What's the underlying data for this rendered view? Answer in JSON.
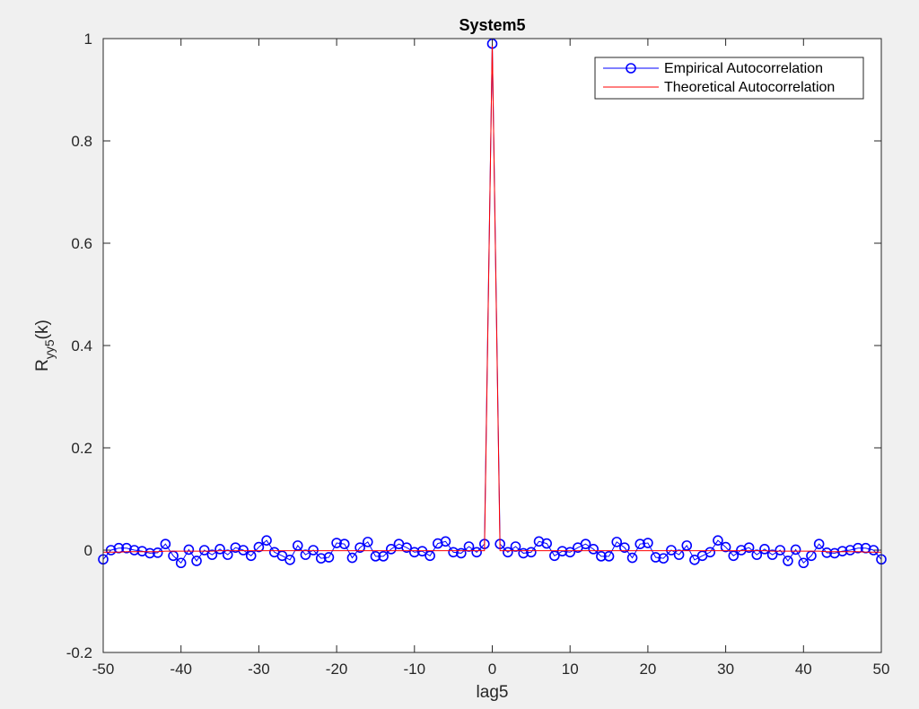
{
  "chart_data": {
    "type": "line",
    "title": "System5",
    "xlabel": "lag5",
    "ylabel_main": "R",
    "ylabel_sub": "yy5",
    "ylabel_suffix": "(k)",
    "xlim": [
      -50,
      50
    ],
    "ylim": [
      -0.2,
      1
    ],
    "xticks": [
      -50,
      -40,
      -30,
      -20,
      -10,
      0,
      10,
      20,
      30,
      40,
      50
    ],
    "yticks": [
      -0.2,
      0,
      0.2,
      0.4,
      0.6,
      0.8,
      1
    ],
    "ytick_labels": [
      "-0.2",
      "0",
      "0.2",
      "0.4",
      "0.6",
      "0.8",
      "1"
    ],
    "grid": false,
    "legend_position": "top-right",
    "x_start": -50,
    "x_step": 1,
    "series": [
      {
        "name": "Empirical Autocorrelation",
        "color": "#0000ff",
        "marker": "circle",
        "values": [
          -0.018,
          0.0,
          0.004,
          0.004,
          0.0,
          -0.002,
          -0.006,
          -0.005,
          0.012,
          -0.011,
          -0.025,
          0.001,
          -0.021,
          0.0,
          -0.009,
          0.002,
          -0.009,
          0.005,
          0.0,
          -0.011,
          0.006,
          0.019,
          -0.004,
          -0.011,
          -0.019,
          0.009,
          -0.009,
          0.0,
          -0.016,
          -0.014,
          0.014,
          0.012,
          -0.015,
          0.005,
          0.016,
          -0.012,
          -0.012,
          0.002,
          0.012,
          0.005,
          -0.004,
          -0.002,
          -0.011,
          0.013,
          0.017,
          -0.004,
          -0.006,
          0.007,
          -0.004,
          0.012,
          0.99,
          0.012,
          -0.004,
          0.007,
          -0.006,
          -0.004,
          0.017,
          0.013,
          -0.011,
          -0.002,
          -0.004,
          0.005,
          0.012,
          0.002,
          -0.012,
          -0.012,
          0.016,
          0.005,
          -0.015,
          0.012,
          0.014,
          -0.014,
          -0.016,
          0.0,
          -0.009,
          0.009,
          -0.019,
          -0.011,
          -0.004,
          0.019,
          0.006,
          -0.011,
          0.0,
          0.005,
          -0.009,
          0.002,
          -0.009,
          0.0,
          -0.021,
          0.001,
          -0.025,
          -0.011,
          0.012,
          -0.005,
          -0.006,
          -0.002,
          0.0,
          0.004,
          0.004,
          0.0,
          -0.018
        ]
      },
      {
        "name": "Theoretical Autocorrelation",
        "color": "#ff0000",
        "marker": "none",
        "values": [
          -0.004,
          -0.004,
          -0.004,
          -0.003,
          -0.003,
          -0.003,
          -0.003,
          -0.003,
          -0.002,
          -0.002,
          -0.002,
          -0.002,
          -0.002,
          -0.002,
          -0.002,
          -0.001,
          -0.001,
          -0.001,
          -0.001,
          -0.001,
          -0.001,
          -0.001,
          -0.001,
          -0.001,
          -0.001,
          -0.001,
          -0.001,
          -0.001,
          -0.001,
          -0.001,
          -0.001,
          -0.001,
          -0.001,
          -0.001,
          -0.001,
          -0.001,
          -0.001,
          -0.001,
          -0.001,
          -0.001,
          -0.001,
          -0.001,
          -0.001,
          -0.001,
          -0.001,
          -0.001,
          -0.001,
          -0.001,
          -0.001,
          -0.001,
          0.99,
          -0.001,
          -0.001,
          -0.001,
          -0.001,
          -0.001,
          -0.001,
          -0.001,
          -0.001,
          -0.001,
          -0.001,
          -0.001,
          -0.001,
          -0.001,
          -0.001,
          -0.001,
          -0.001,
          -0.001,
          -0.001,
          -0.001,
          -0.001,
          -0.001,
          -0.001,
          -0.001,
          -0.001,
          -0.001,
          -0.001,
          -0.001,
          -0.001,
          -0.001,
          -0.001,
          -0.001,
          -0.001,
          -0.001,
          -0.001,
          -0.001,
          -0.002,
          -0.002,
          -0.002,
          -0.002,
          -0.002,
          -0.002,
          -0.002,
          -0.003,
          -0.003,
          -0.003,
          -0.003,
          -0.003,
          -0.004,
          -0.004,
          -0.004
        ]
      }
    ]
  }
}
